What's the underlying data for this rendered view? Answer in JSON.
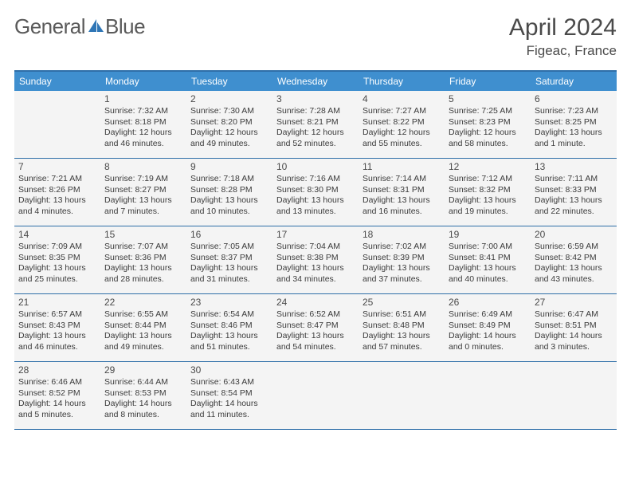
{
  "brand": {
    "part1": "General",
    "part2": "Blue"
  },
  "title": "April 2024",
  "location": "Figeac, France",
  "weekdays": [
    "Sunday",
    "Monday",
    "Tuesday",
    "Wednesday",
    "Thursday",
    "Friday",
    "Saturday"
  ],
  "colors": {
    "header_band": "#3f8fcf",
    "rule": "#2f6fa8",
    "cell_bg": "#f4f4f4",
    "text": "#3b3b3b",
    "logo_blue": "#2f76b6"
  },
  "grid": {
    "cols": 7,
    "rows": 5,
    "leading_blanks": 1,
    "trailing_blanks": 4
  },
  "days": [
    {
      "n": 1,
      "sunrise": "7:32 AM",
      "sunset": "8:18 PM",
      "daylight": "12 hours and 46 minutes."
    },
    {
      "n": 2,
      "sunrise": "7:30 AM",
      "sunset": "8:20 PM",
      "daylight": "12 hours and 49 minutes."
    },
    {
      "n": 3,
      "sunrise": "7:28 AM",
      "sunset": "8:21 PM",
      "daylight": "12 hours and 52 minutes."
    },
    {
      "n": 4,
      "sunrise": "7:27 AM",
      "sunset": "8:22 PM",
      "daylight": "12 hours and 55 minutes."
    },
    {
      "n": 5,
      "sunrise": "7:25 AM",
      "sunset": "8:23 PM",
      "daylight": "12 hours and 58 minutes."
    },
    {
      "n": 6,
      "sunrise": "7:23 AM",
      "sunset": "8:25 PM",
      "daylight": "13 hours and 1 minute."
    },
    {
      "n": 7,
      "sunrise": "7:21 AM",
      "sunset": "8:26 PM",
      "daylight": "13 hours and 4 minutes."
    },
    {
      "n": 8,
      "sunrise": "7:19 AM",
      "sunset": "8:27 PM",
      "daylight": "13 hours and 7 minutes."
    },
    {
      "n": 9,
      "sunrise": "7:18 AM",
      "sunset": "8:28 PM",
      "daylight": "13 hours and 10 minutes."
    },
    {
      "n": 10,
      "sunrise": "7:16 AM",
      "sunset": "8:30 PM",
      "daylight": "13 hours and 13 minutes."
    },
    {
      "n": 11,
      "sunrise": "7:14 AM",
      "sunset": "8:31 PM",
      "daylight": "13 hours and 16 minutes."
    },
    {
      "n": 12,
      "sunrise": "7:12 AM",
      "sunset": "8:32 PM",
      "daylight": "13 hours and 19 minutes."
    },
    {
      "n": 13,
      "sunrise": "7:11 AM",
      "sunset": "8:33 PM",
      "daylight": "13 hours and 22 minutes."
    },
    {
      "n": 14,
      "sunrise": "7:09 AM",
      "sunset": "8:35 PM",
      "daylight": "13 hours and 25 minutes."
    },
    {
      "n": 15,
      "sunrise": "7:07 AM",
      "sunset": "8:36 PM",
      "daylight": "13 hours and 28 minutes."
    },
    {
      "n": 16,
      "sunrise": "7:05 AM",
      "sunset": "8:37 PM",
      "daylight": "13 hours and 31 minutes."
    },
    {
      "n": 17,
      "sunrise": "7:04 AM",
      "sunset": "8:38 PM",
      "daylight": "13 hours and 34 minutes."
    },
    {
      "n": 18,
      "sunrise": "7:02 AM",
      "sunset": "8:39 PM",
      "daylight": "13 hours and 37 minutes."
    },
    {
      "n": 19,
      "sunrise": "7:00 AM",
      "sunset": "8:41 PM",
      "daylight": "13 hours and 40 minutes."
    },
    {
      "n": 20,
      "sunrise": "6:59 AM",
      "sunset": "8:42 PM",
      "daylight": "13 hours and 43 minutes."
    },
    {
      "n": 21,
      "sunrise": "6:57 AM",
      "sunset": "8:43 PM",
      "daylight": "13 hours and 46 minutes."
    },
    {
      "n": 22,
      "sunrise": "6:55 AM",
      "sunset": "8:44 PM",
      "daylight": "13 hours and 49 minutes."
    },
    {
      "n": 23,
      "sunrise": "6:54 AM",
      "sunset": "8:46 PM",
      "daylight": "13 hours and 51 minutes."
    },
    {
      "n": 24,
      "sunrise": "6:52 AM",
      "sunset": "8:47 PM",
      "daylight": "13 hours and 54 minutes."
    },
    {
      "n": 25,
      "sunrise": "6:51 AM",
      "sunset": "8:48 PM",
      "daylight": "13 hours and 57 minutes."
    },
    {
      "n": 26,
      "sunrise": "6:49 AM",
      "sunset": "8:49 PM",
      "daylight": "14 hours and 0 minutes."
    },
    {
      "n": 27,
      "sunrise": "6:47 AM",
      "sunset": "8:51 PM",
      "daylight": "14 hours and 3 minutes."
    },
    {
      "n": 28,
      "sunrise": "6:46 AM",
      "sunset": "8:52 PM",
      "daylight": "14 hours and 5 minutes."
    },
    {
      "n": 29,
      "sunrise": "6:44 AM",
      "sunset": "8:53 PM",
      "daylight": "14 hours and 8 minutes."
    },
    {
      "n": 30,
      "sunrise": "6:43 AM",
      "sunset": "8:54 PM",
      "daylight": "14 hours and 11 minutes."
    }
  ],
  "labels": {
    "sunrise_prefix": "Sunrise: ",
    "sunset_prefix": "Sunset: ",
    "daylight_prefix": "Daylight: "
  }
}
